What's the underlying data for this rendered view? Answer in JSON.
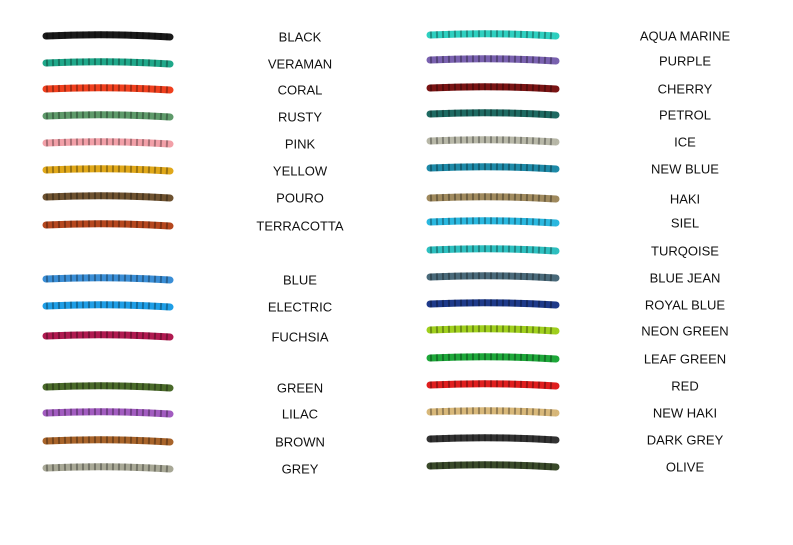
{
  "columns": [
    {
      "items": [
        {
          "label": "BLACK",
          "color": "#1a1a1a"
        },
        {
          "label": "VERAMAN",
          "color": "#1fa88a"
        },
        {
          "label": "CORAL",
          "color": "#f0401e"
        },
        {
          "label": "RUSTY",
          "color": "#5e9a6a"
        },
        {
          "label": "PINK",
          "color": "#f2a0a8"
        },
        {
          "label": "YELLOW",
          "color": "#e0a81a"
        },
        {
          "label": "POURO",
          "color": "#6e5230"
        },
        {
          "label": "TERRACOTTA",
          "color": "#b5471e"
        },
        {
          "label": "BLUE",
          "color": "#3a8ed6"
        },
        {
          "label": "ELECTRIC",
          "color": "#1e9ee6"
        },
        {
          "label": "FUCHSIA",
          "color": "#b01a50"
        },
        {
          "label": "GREEN",
          "color": "#4a6a2a"
        },
        {
          "label": "LILAC",
          "color": "#a25cc0"
        },
        {
          "label": "BROWN",
          "color": "#a8642a"
        },
        {
          "label": "GREY",
          "color": "#a8a896"
        }
      ]
    },
    {
      "items": [
        {
          "label": "AQUA MARINE",
          "color": "#2ed0c0"
        },
        {
          "label": "PURPLE",
          "color": "#7a62b0"
        },
        {
          "label": "CHERRY",
          "color": "#7a1414"
        },
        {
          "label": "PETROL",
          "color": "#1e6a62"
        },
        {
          "label": "ICE",
          "color": "#b8b8a8"
        },
        {
          "label": "NEW BLUE",
          "color": "#1e8aa8"
        },
        {
          "label": "HAKI",
          "color": "#a08a5e"
        },
        {
          "label": "SIEL",
          "color": "#2ab8e0"
        },
        {
          "label": "TURQOISE",
          "color": "#2ec0c0"
        },
        {
          "label": "BLUE JEAN",
          "color": "#4a6a7a"
        },
        {
          "label": "ROYAL BLUE",
          "color": "#1e3a8a"
        },
        {
          "label": "NEON GREEN",
          "color": "#a0d01e"
        },
        {
          "label": "LEAF GREEN",
          "color": "#1ea83a"
        },
        {
          "label": "RED",
          "color": "#e01e1e"
        },
        {
          "label": "NEW HAKI",
          "color": "#d8b87a"
        },
        {
          "label": "DARK GREY",
          "color": "#333333"
        },
        {
          "label": "OLIVE",
          "color": "#3a4a2a"
        }
      ]
    }
  ]
}
